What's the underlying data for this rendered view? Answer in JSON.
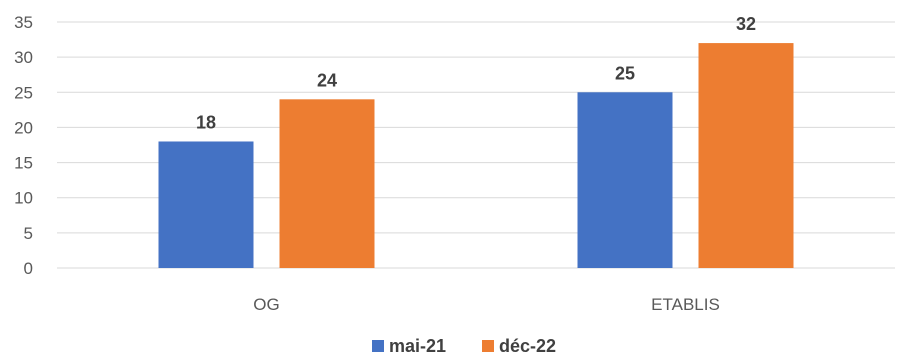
{
  "chart_data": {
    "type": "bar",
    "categories": [
      "OG",
      "ETABLIS"
    ],
    "series": [
      {
        "name": "mai-21",
        "values": [
          18,
          25
        ],
        "color": "#4472C4"
      },
      {
        "name": "déc-22",
        "values": [
          24,
          32
        ],
        "color": "#ED7D31"
      }
    ],
    "title": "",
    "xlabel": "",
    "ylabel": "",
    "ylim": [
      0,
      35
    ],
    "yticks": [
      0,
      5,
      10,
      15,
      20,
      25,
      30,
      35
    ],
    "grid": true,
    "data_labels": true,
    "legend_position": "bottom",
    "gridline_color": "#D9D9D9"
  }
}
